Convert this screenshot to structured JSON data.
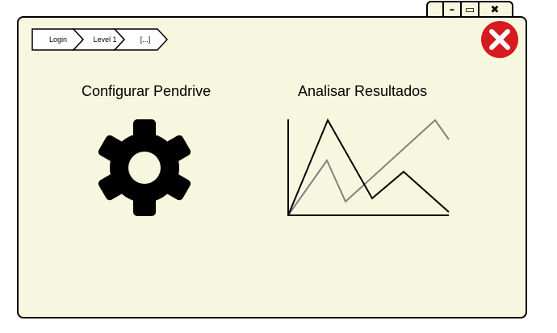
{
  "window_controls": {
    "minimize_glyph": "–",
    "maximize_glyph": "▭",
    "close_glyph": "✖"
  },
  "breadcrumb": {
    "items": [
      "Login",
      "Level 1",
      "[...]"
    ]
  },
  "main": {
    "items": [
      {
        "label": "Configurar Pendrive",
        "icon": "gear-icon"
      },
      {
        "label": "Analisar Resultados",
        "icon": "line-chart-icon"
      }
    ]
  },
  "colors": {
    "window_bg": "#f7f7df",
    "close_red": "#d71920",
    "series_dark": "#000000",
    "series_gray": "#808080"
  }
}
